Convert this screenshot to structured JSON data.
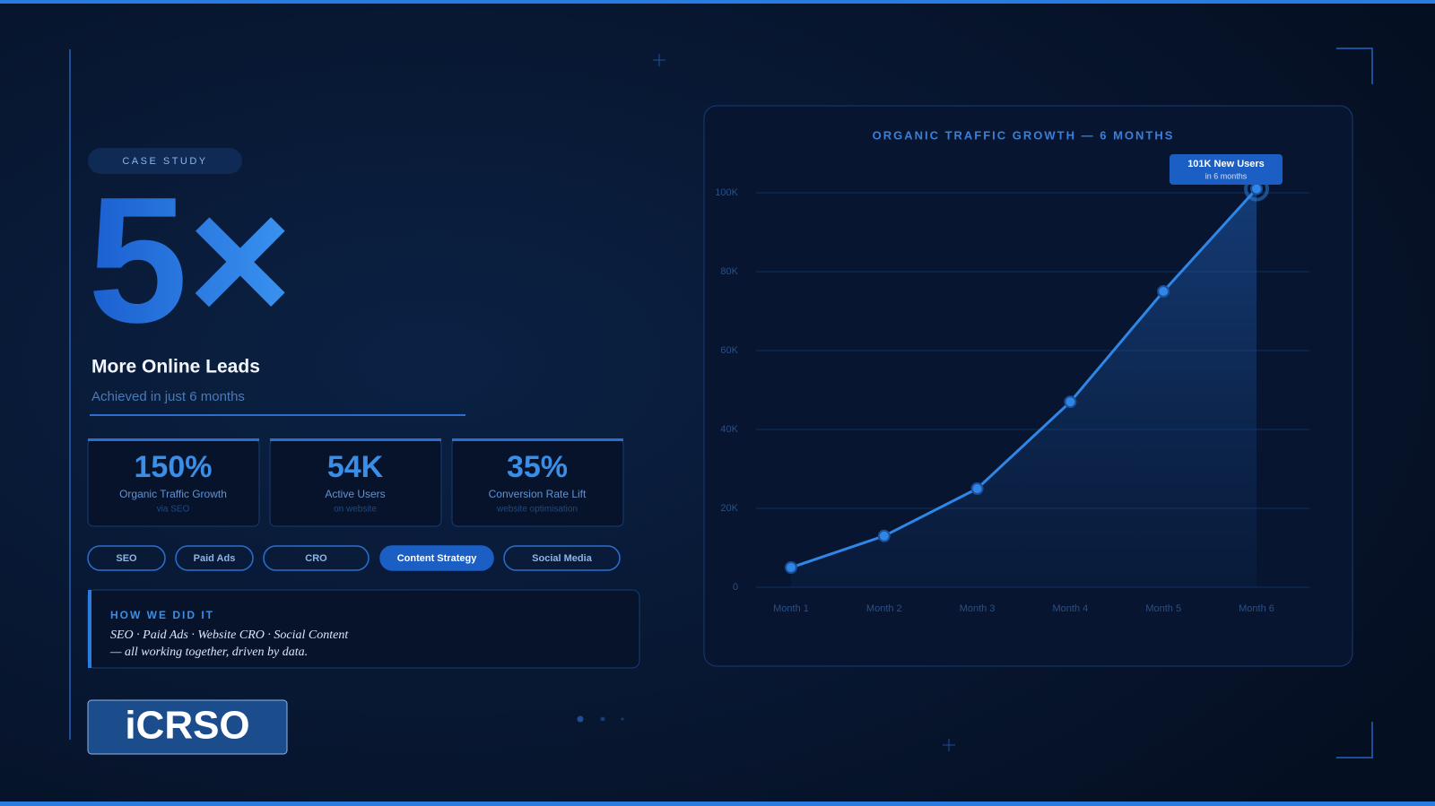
{
  "badge": "CASE STUDY",
  "headline": {
    "multiplier": "5×",
    "title": "More Online Leads",
    "subtitle": "Achieved in just 6 months"
  },
  "stats": [
    {
      "value": "150%",
      "label": "Organic Traffic Growth",
      "note": "via SEO"
    },
    {
      "value": "54K",
      "label": "Active Users",
      "note": "on website"
    },
    {
      "value": "35%",
      "label": "Conversion Rate Lift",
      "note": "website optimisation"
    }
  ],
  "tags": [
    {
      "label": "SEO",
      "active": false
    },
    {
      "label": "Paid Ads",
      "active": false
    },
    {
      "label": "CRO",
      "active": false
    },
    {
      "label": "Content Strategy",
      "active": true
    },
    {
      "label": "Social Media",
      "active": false
    }
  ],
  "how": {
    "title": "HOW WE DID IT",
    "lines": [
      "SEO · Paid Ads · Website CRO · Social Content",
      "— all working together, driven by data."
    ]
  },
  "logo": "iCRSO",
  "chart_data": {
    "type": "line",
    "title": "ORGANIC TRAFFIC GROWTH — 6 MONTHS",
    "categories": [
      "Month 1",
      "Month 2",
      "Month 3",
      "Month 4",
      "Month 5",
      "Month 6"
    ],
    "values": [
      5000,
      13000,
      25000,
      47000,
      75000,
      101000
    ],
    "color": "#2f86e6",
    "ylim": [
      0,
      100000
    ],
    "yticks": [
      0,
      {
        "value": 20000,
        "label": "20K"
      },
      {
        "value": 40000,
        "label": "40K"
      },
      {
        "value": 60000,
        "label": "60K"
      },
      {
        "value": 80000,
        "label": "80K"
      },
      {
        "value": 100000,
        "label": "100K"
      }
    ],
    "grid": true,
    "annotation": {
      "text": "101K New Users",
      "note": "in 6 months"
    }
  }
}
